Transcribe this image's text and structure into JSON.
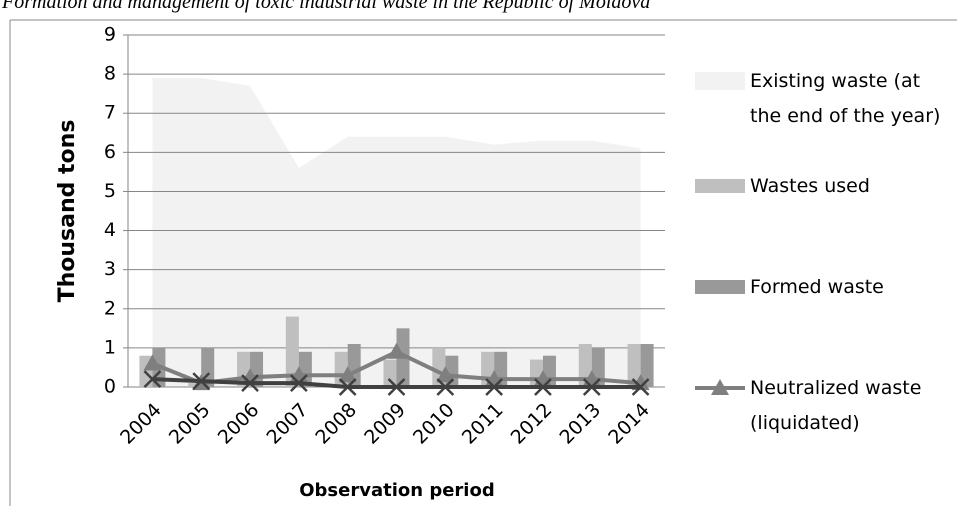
{
  "chart_data": {
    "type": "combo",
    "title": "Formation and management of toxic industrial waste in the Republic of Moldova",
    "x_label": "Observation period",
    "y_label": "Thousand tons",
    "categories": [
      "2004",
      "2005",
      "2006",
      "2007",
      "2008",
      "2009",
      "2010",
      "2011",
      "2012",
      "2013",
      "2014"
    ],
    "series": [
      {
        "name": "Existing waste (at the end of the year)",
        "kind": "area",
        "color": "#f2f2f2",
        "values": [
          7.9,
          7.9,
          7.7,
          5.6,
          6.4,
          6.4,
          6.4,
          6.2,
          6.3,
          6.3,
          6.1
        ]
      },
      {
        "name": "Wastes used",
        "kind": "bar",
        "color": "#bfbfbf",
        "values": [
          0.8,
          0.1,
          0.9,
          1.8,
          0.9,
          0.7,
          1.0,
          0.9,
          0.7,
          1.1,
          1.1
        ]
      },
      {
        "name": "Formed waste",
        "kind": "bar",
        "color": "#999999",
        "values": [
          1.0,
          1.0,
          0.9,
          0.9,
          1.1,
          1.5,
          0.8,
          0.9,
          0.8,
          1.0,
          1.1
        ]
      },
      {
        "name": "Neutralized waste (liquidated)",
        "kind": "line",
        "marker": "triangle",
        "color": "#7f7f7f",
        "values": [
          0.6,
          0.1,
          0.25,
          0.3,
          0.3,
          0.9,
          0.3,
          0.2,
          0.2,
          0.2,
          0.1
        ]
      },
      {
        "kind": "line",
        "marker": "x",
        "color": "#404040",
        "values": [
          0.2,
          0.15,
          0.1,
          0.1,
          0,
          0,
          0,
          0,
          0,
          0,
          0
        ]
      }
    ],
    "ylim": [
      0,
      9
    ],
    "yticks": [
      0,
      1,
      2,
      3,
      4,
      5,
      6,
      7,
      8,
      9
    ],
    "grid": true
  }
}
